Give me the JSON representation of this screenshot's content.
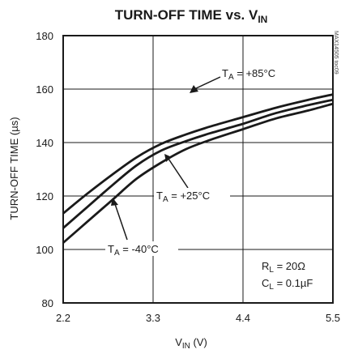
{
  "chart_data": {
    "type": "line",
    "title": {
      "main": "TURN-OFF TIME vs. V",
      "sub": "IN"
    },
    "xlabel": {
      "main": "V",
      "sub": "IN",
      "suffix": " (V)"
    },
    "ylabel": "TURN-OFF TIME (µs)",
    "xlim": [
      2.2,
      5.5
    ],
    "ylim": [
      80,
      180
    ],
    "x_ticks": [
      "2.2",
      "3.3",
      "4.4",
      "5.5"
    ],
    "y_ticks": [
      "80",
      "100",
      "120",
      "140",
      "160",
      "180"
    ],
    "grid": true,
    "series": [
      {
        "name": "T_A = +85°C",
        "x": [
          2.2,
          2.5,
          2.8,
          3.1,
          3.4,
          3.7,
          4.0,
          4.4,
          4.8,
          5.2,
          5.5
        ],
        "y": [
          113.5,
          121,
          128,
          134.5,
          139.5,
          143,
          146,
          149.5,
          153,
          156,
          158
        ]
      },
      {
        "name": "T_A = +25°C",
        "x": [
          2.2,
          2.5,
          2.8,
          3.1,
          3.4,
          3.7,
          4.0,
          4.4,
          4.8,
          5.2,
          5.5
        ],
        "y": [
          108,
          116,
          124,
          131.5,
          137,
          140.5,
          143.5,
          147,
          151,
          154,
          156
        ]
      },
      {
        "name": "T_A = -40°C",
        "x": [
          2.2,
          2.5,
          2.8,
          3.1,
          3.4,
          3.7,
          4.0,
          4.4,
          4.8,
          5.2,
          5.5
        ],
        "y": [
          102.5,
          110.5,
          118.5,
          126.5,
          132.5,
          137.5,
          141,
          145,
          149,
          152,
          154.5
        ]
      }
    ],
    "annotations": [
      {
        "id": "t85",
        "prefix": "T",
        "sub": "A",
        "text": " = +85°C"
      },
      {
        "id": "t25",
        "prefix": "T",
        "sub": "A",
        "text": " = +25°C"
      },
      {
        "id": "tm40",
        "prefix": "T",
        "sub": "A",
        "text": " = -40°C"
      }
    ],
    "conditions": [
      {
        "prefix": "R",
        "sub": "L",
        "text": " = 20Ω"
      },
      {
        "prefix": "C",
        "sub": "L",
        "text": " = 0.1µF"
      }
    ],
    "side_code": "MAX14505 toc09"
  }
}
